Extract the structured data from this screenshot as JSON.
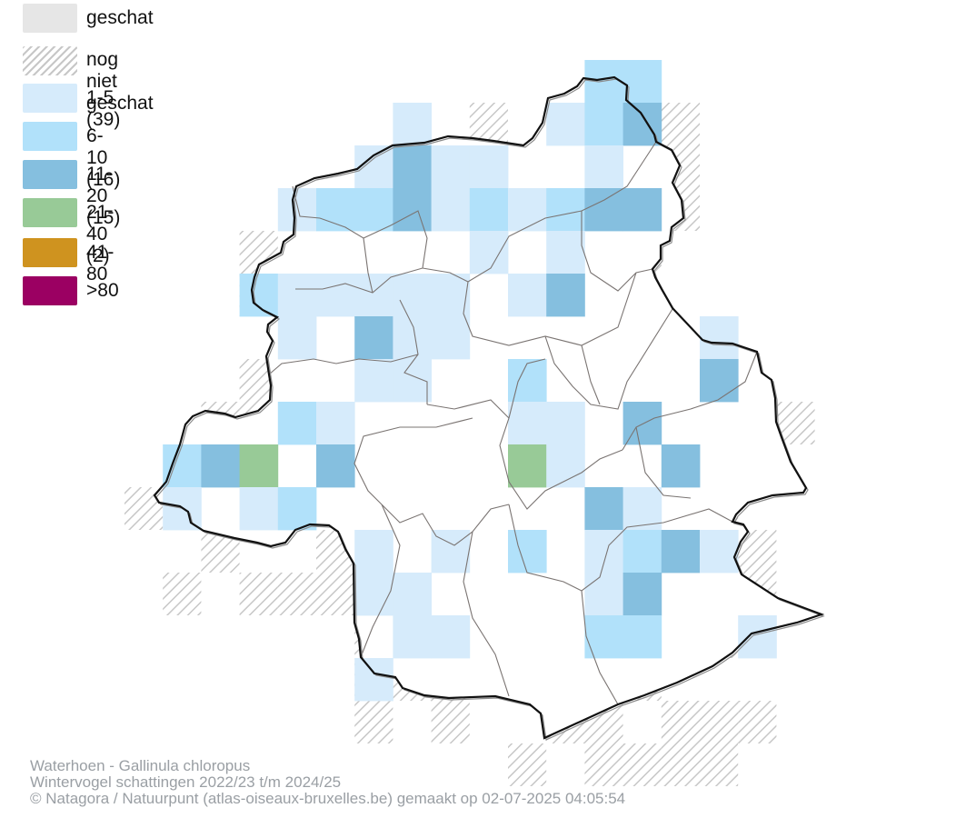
{
  "legend": {
    "items": [
      {
        "label": "geschat",
        "color": "#e6e6e6",
        "pattern": "solid"
      },
      {
        "label": "nog niet geschat",
        "color": "#c7c7c7",
        "pattern": "hatch"
      },
      {
        "label": "1-5 (39)",
        "color": "#d6ebfb",
        "pattern": "solid"
      },
      {
        "label": "6-10 (16)",
        "color": "#b1e1fa",
        "pattern": "solid"
      },
      {
        "label": "11-20 (15)",
        "color": "#85bfdf",
        "pattern": "solid"
      },
      {
        "label": "21-40 (2)",
        "color": "#98ca97",
        "pattern": "solid"
      },
      {
        "label": "41-80",
        "color": "#cf931f",
        "pattern": "solid"
      },
      {
        "label": ">80",
        "color": "#9b0062",
        "pattern": "solid"
      }
    ]
  },
  "credits": {
    "line1": "Waterhoen - Gallinula chloropus",
    "line2": "Wintervogel schattingen 2022/23 t/m 2024/25",
    "line3": "© Natagora / Natuurpunt (atlas-oiseaux-bruxelles.be) gemaakt op 02-07-2025 04:05:54"
  },
  "colors": {
    "boundary": "#111111",
    "municipal_lines": "#7a7472",
    "hatch": "#c7c7c7"
  }
}
